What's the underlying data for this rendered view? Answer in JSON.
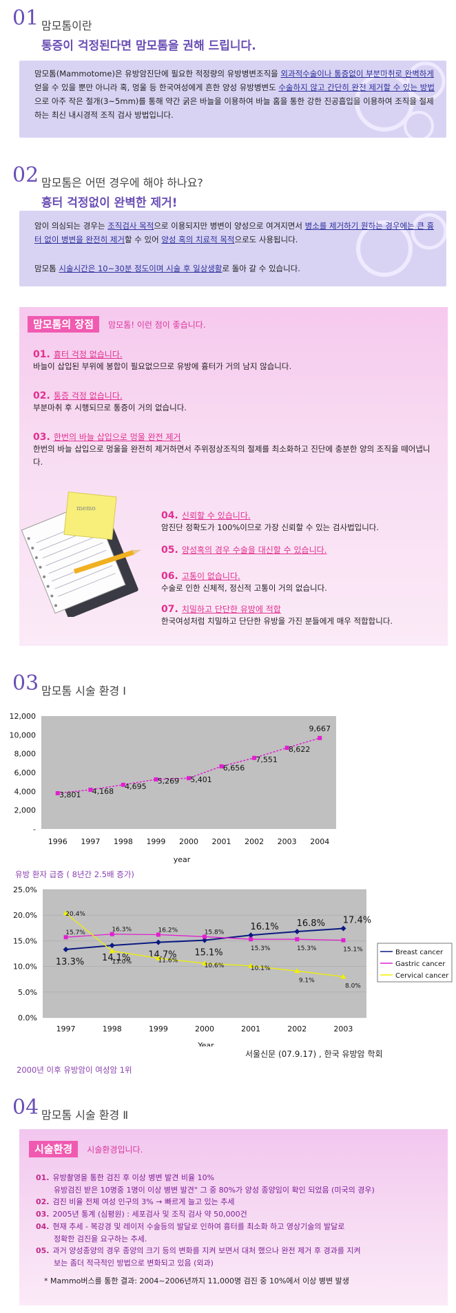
{
  "sec1": {
    "num": "01",
    "title": "맘모톰이란",
    "subtitle": "통증이 걱정된다면 맘모톰을 권해 드립니다.",
    "p_a": "맘모톰(Mammotome)은 유방암진단에 필요한 적정량의 유방병변조직을 ",
    "p_hl1": "외과적수술이나 통증없이 부분마취로 완벽하게",
    "p_b": " 얻을 수 있을 뿐만 아니라 혹, 멍울 등 한국여성에게 흔한 양성 유방병변도 ",
    "p_hl2": "수술하지 않고 간단히 완전 제거할 수 있는 방법",
    "p_c": "으로 아주 작은 절개(3~5mm)를 통해 약간 굵은 바늘을 이용하여 바늘 홈을 통한 강한 진공흡입을 이용하여 조직을 절제하는 최신 내시경적 조직 검사 방법입니다."
  },
  "sec2": {
    "num": "02",
    "title": "맘모톰은 어떤 경우에 해야 하나요?",
    "subtitle": "흉터 걱정없이 완벽한 제거!",
    "p1_a": "암이 의심되는 경우는 ",
    "p1_hl1": "조직검사 목적",
    "p1_b": "으로 이용되지만 병변이 양성으로 여겨지면서 ",
    "p1_hl2": "병소를 제거하기 원하는 경우에는 큰 흉터 없이 병변을 완전히 제거",
    "p1_c": "할 수 있어 ",
    "p1_hl3": "양성 혹의 치료적 목적",
    "p1_d": "으로도 사용됩니다.",
    "p2_a": "맘모톰 ",
    "p2_hl": "시술시간은 10~30분 정도이며 시술 후 일상생활",
    "p2_b": "로 돌아 갈 수 있습니다."
  },
  "adv": {
    "tag": "맘모톰의 장점",
    "desc": "맘모톰! 이런 점이 좋습니다.",
    "memo": "memo",
    "items": [
      {
        "num": "01.",
        "title": "흉터 걱정 없습니다.",
        "desc": "바늘이 삽입된 부위에 봉합이 필요없으므로 유방에 흉터가 거의 남지 않습니다."
      },
      {
        "num": "02.",
        "title": "통증 걱정 없습니다.",
        "desc": "부분마취 후 시행되므로 통증이 거의 없습니다."
      },
      {
        "num": "03.",
        "title": "한번의 바늘 삽입으로 멍울 완전 제거",
        "desc": "한번의 바늘 삽입으로 멍울을 완전히 제거하면서 주위정상조직의 절제를 최소화하고 진단에 충분한 양의 조직을 떼어냅니다."
      },
      {
        "num": "04.",
        "title": "신뢰할 수 있습니다.",
        "desc": "암진단 정확도가 100%이므로 가장 신뢰할 수 있는 검사법입니다."
      },
      {
        "num": "05.",
        "title": "양성혹의 경우 수술을 대신할 수 있습니다.",
        "desc": ""
      },
      {
        "num": "06.",
        "title": "고통이 없습니다.",
        "desc": "수술로 인한 신체적, 정신적 고통이 거의 없습니다."
      },
      {
        "num": "07.",
        "title": "치밀하고 단단한 유방에 적합",
        "desc": "한국여성처럼 치밀하고 단단한 유방을 가진 분들에게 매우 적합합니다."
      }
    ]
  },
  "sec3": {
    "num": "03",
    "title": "맘모톰 시술 환경 Ⅰ",
    "caption1": "유방 환자 급증 ( 8년간 2.5배 증가)",
    "caption2": "2000년 이후 유방암이 여성암 1위",
    "source": "서울신문 (07.9.17) , 한국 유방암 학회"
  },
  "chart_data": [
    {
      "type": "line",
      "x": [
        "1996",
        "1997",
        "1998",
        "1999",
        "2000",
        "2001",
        "2002",
        "2003",
        "2004"
      ],
      "series": [
        {
          "values": [
            3801,
            4168,
            4695,
            5269,
            5401,
            6656,
            7551,
            8622,
            9667
          ]
        }
      ],
      "labels": [
        "3,801",
        "4,168",
        "4,695",
        "5,269",
        "5,401",
        "6,656",
        "7,551",
        "8,622",
        "9,667"
      ],
      "yticks": [
        "12,000",
        "10,000",
        "8,000",
        "6,000",
        "4,000",
        "2,000",
        "-"
      ],
      "ylim": [
        0,
        12000
      ],
      "xlabel": "year",
      "color": "#e020d0",
      "background": "#c0c0c0"
    },
    {
      "type": "line",
      "x": [
        "1997",
        "1998",
        "1999",
        "2000",
        "2001",
        "2002",
        "2003"
      ],
      "series": [
        {
          "name": "Breast cancer",
          "values": [
            13.3,
            14.1,
            14.7,
            15.1,
            16.1,
            16.8,
            17.4
          ],
          "labels": [
            "13.3%",
            "14.1%",
            "14.7%",
            "15.1%",
            "16.1%",
            "16.8%",
            "17.4%"
          ],
          "color": "#0a1a80"
        },
        {
          "name": "Gastric cancer",
          "values": [
            15.7,
            16.3,
            16.2,
            15.8,
            15.3,
            15.3,
            15.1
          ],
          "labels": [
            "15.7%",
            "16.3%",
            "16.2%",
            "15.8%",
            "15.3%",
            "15.3%",
            "15.1%"
          ],
          "color": "#e020d0"
        },
        {
          "name": "Cervical cancer",
          "values": [
            20.4,
            13.0,
            11.6,
            10.6,
            10.1,
            9.1,
            8.0
          ],
          "labels": [
            "20.4%",
            "13.0%",
            "11.6%",
            "10.6%",
            "10.1%",
            "9.1%",
            "8.0%"
          ],
          "color": "#f0f000"
        }
      ],
      "yticks": [
        "25.0%",
        "20.0%",
        "15.0%",
        "10.0%",
        "5.0%",
        "0.0%"
      ],
      "ylim": [
        0,
        25
      ],
      "xlabel": "Year",
      "legend": "right",
      "background": "#c0c0c0"
    }
  ],
  "sec4": {
    "num": "04",
    "title": "맘모톰 시술 환경 Ⅱ",
    "tag": "시술환경",
    "desc": "시술환경입니다.",
    "items": [
      {
        "num": "01.",
        "text": "유방촬영을 통한 검진 후 이상 병변 발견 비율 10%",
        "sub": "유방검진 받은 10명중 1명이 이상 병변 발견\" 그 중 80%가 양성 종양임이 확인 되었음 (미국의 경우)"
      },
      {
        "num": "02.",
        "text": "검진 비율 전체 여성 인구의 3% → 빠르게 늘고 있는 추세",
        "sub": ""
      },
      {
        "num": "03.",
        "text": "2005년 통계 (심평원) : 세포검사 및 조직 검사 약 50,000건",
        "sub": ""
      },
      {
        "num": "04.",
        "text": "현재 추세 - 복강경 및 레이저 수술등의 발달로 인하여 흉터를 최소화 하고 영상기술의 발달로",
        "sub": "정확한 검진을 요구하는 추세."
      },
      {
        "num": "05.",
        "text": "과거 양성종양의 경우 종양의 크기 등의 변화를 지켜 보면서 대처 했으나 완전 제거 후 경과를 지켜",
        "sub": "보는 좀더 적극적인 방법으로 변화되고 있음 (외과)"
      }
    ],
    "note": "* Mammo버스를 통한 결과: 2004~2006년까지 11,000명 검진 중 10%에서 이상 병변 발생"
  }
}
